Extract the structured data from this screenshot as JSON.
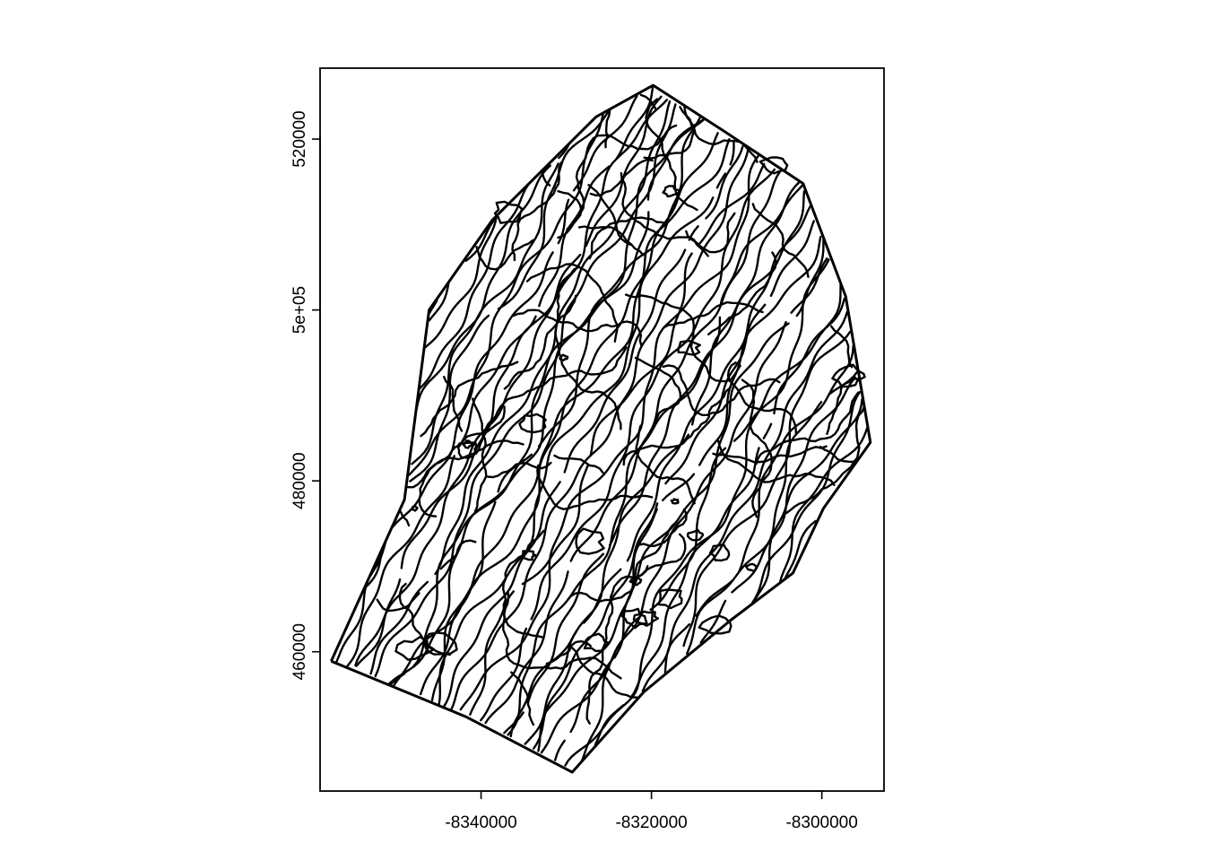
{
  "chart_data": {
    "type": "map",
    "title": "",
    "xlabel": "",
    "ylabel": "",
    "x_ticks": [
      {
        "value": -8340000,
        "label": "-8340000"
      },
      {
        "value": -8320000,
        "label": "-8320000"
      },
      {
        "value": -8300000,
        "label": "-8300000"
      }
    ],
    "y_ticks": [
      {
        "value": 460000,
        "label": "460000"
      },
      {
        "value": 480000,
        "label": "480000"
      },
      {
        "value": 500000,
        "label": "5e+05"
      },
      {
        "value": 520000,
        "label": "520000"
      }
    ],
    "xlim": [
      -8358900,
      -8292700
    ],
    "ylim": [
      443700,
      528300
    ],
    "boundary_hull": [
      [
        -8357600,
        458900
      ],
      [
        -8349000,
        477800
      ],
      [
        -8346100,
        500000
      ],
      [
        -8338700,
        510500
      ],
      [
        -8326500,
        522600
      ],
      [
        -8319800,
        526300
      ],
      [
        -8311600,
        521000
      ],
      [
        -8302200,
        514800
      ],
      [
        -8297200,
        501600
      ],
      [
        -8294300,
        484500
      ],
      [
        -8299800,
        476800
      ],
      [
        -8303400,
        469200
      ],
      [
        -8310700,
        463700
      ],
      [
        -8320900,
        455300
      ],
      [
        -8329300,
        445900
      ],
      [
        -8341800,
        452400
      ],
      [
        -8357600,
        458900
      ]
    ],
    "grid": false,
    "legend": false
  }
}
